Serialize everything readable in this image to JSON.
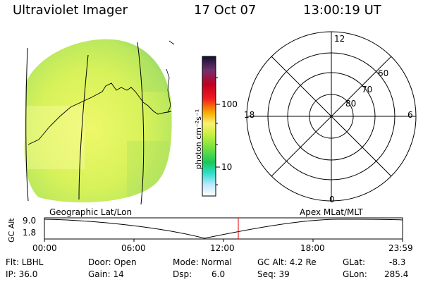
{
  "header": {
    "instrument": "Ultraviolet Imager",
    "date": "17 Oct 07",
    "time": "13:00:19 UT"
  },
  "colorbar": {
    "unit_label": "photon cm⁻²s⁻¹",
    "ticks": [
      "100",
      "10"
    ],
    "scale": "log"
  },
  "polar": {
    "mlt_labels": [
      "12",
      "18",
      "6",
      "0"
    ],
    "lat_labels": [
      "60",
      "70",
      "80"
    ]
  },
  "timeline": {
    "left_label": "Geographic Lat/Lon",
    "right_label": "Apex MLat/MLT",
    "axis_title": "GC Alt",
    "y_ticks": [
      "9.0",
      "1.8"
    ],
    "x_ticks": [
      "00:00",
      "06:00",
      "12:00",
      "18:00",
      "23:59"
    ],
    "marker_time": "13:00"
  },
  "status": {
    "filter": "Flt: LBHL",
    "ip": "IP: 36.0",
    "door": "Door: Open",
    "gain": "Gain: 14",
    "mode": "Mode: Normal",
    "dsp_label": "Dsp:",
    "dsp_value": "6.0",
    "gc_alt": "GC Alt: 4.2 Re",
    "seq": "Seq: 39",
    "glat_label": "GLat:",
    "glat_value": "-8.3",
    "glon_label": "GLon:",
    "glon_value": "285.4"
  },
  "colors": {
    "disk_main": "#d8f25a",
    "disk_edge": "#a7e05a",
    "marker": "#e00000"
  }
}
